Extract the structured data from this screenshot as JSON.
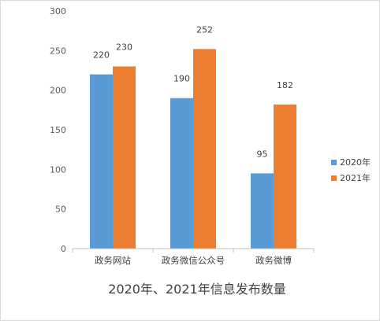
{
  "chart_data": {
    "type": "bar",
    "title": "2020年、2021年信息发布数量",
    "categories": [
      "政务网站",
      "政务微信公众号",
      "政务微博"
    ],
    "series": [
      {
        "name": "2020年",
        "color": "#5B9BD5",
        "values": [
          220,
          190,
          95
        ]
      },
      {
        "name": "2021年",
        "color": "#ED7D31",
        "values": [
          230,
          252,
          182
        ]
      }
    ],
    "ylim": [
      0,
      300
    ],
    "yticks": [
      0,
      50,
      100,
      150,
      200,
      250,
      300
    ],
    "grid": false,
    "legend": "right"
  }
}
